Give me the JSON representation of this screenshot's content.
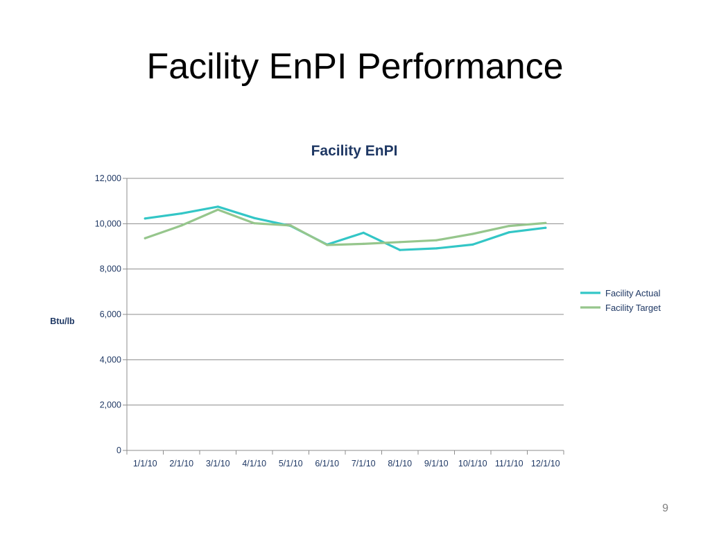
{
  "slide": {
    "title": "Facility EnPI Performance",
    "page_number": "9"
  },
  "chart_data": {
    "type": "line",
    "title": "Facility EnPI",
    "xlabel": "",
    "ylabel": "Btu/lb",
    "categories": [
      "1/1/10",
      "2/1/10",
      "3/1/10",
      "4/1/10",
      "5/1/10",
      "6/1/10",
      "7/1/10",
      "8/1/10",
      "9/1/10",
      "10/1/10",
      "11/1/10",
      "12/1/10"
    ],
    "series": [
      {
        "name": "Facility Actual",
        "color": "#33c6c6",
        "values": [
          10230,
          10450,
          10750,
          10250,
          9900,
          9080,
          9600,
          8840,
          8910,
          9080,
          9620,
          9820
        ]
      },
      {
        "name": "Facility Target",
        "color": "#96c68c",
        "values": [
          9360,
          9920,
          10620,
          10020,
          9920,
          9060,
          9110,
          9190,
          9270,
          9550,
          9900,
          10030
        ]
      }
    ],
    "ylim": [
      0,
      12000
    ],
    "yticks": [
      "0",
      "2,000",
      "4,000",
      "6,000",
      "8,000",
      "10,000",
      "12,000"
    ],
    "grid": true,
    "legend": "right"
  }
}
